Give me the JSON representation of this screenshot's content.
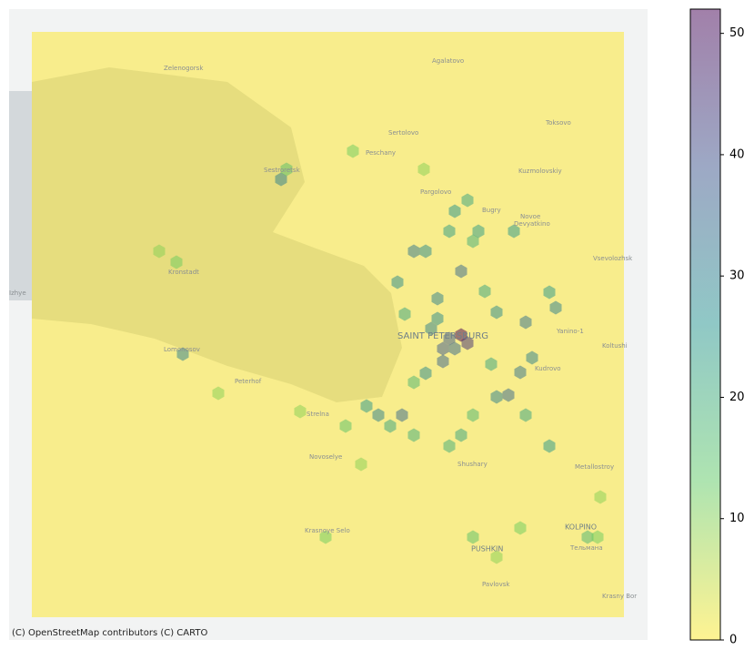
{
  "chart_data": {
    "type": "hexbin",
    "attribution": "(C) OpenStreetMap contributors (C) CARTO",
    "map_labels": [
      "Zelenogorsk",
      "Agalatovo",
      "Sestroretsk",
      "Sertolovo",
      "Peschany",
      "Toksovo",
      "Kuzmolovskiy",
      "Pargolovo",
      "Bugry",
      "Novoe",
      "Devyatkino",
      "Vsevolozhsk",
      "Kronstadt",
      "SAINT PETERSBURG",
      "Yanino-1",
      "Koltushi",
      "Lomonosov",
      "Peterhof",
      "Kudrovo",
      "Strelna",
      "Novoselye",
      "Shushary",
      "Metallostroy",
      "Krasnoye Selo",
      "PUSHKIN",
      "KOLPINO",
      "Тельмана",
      "Pavlovsk",
      "Krasny Bor",
      "Izhye"
    ],
    "xlim": [
      29.4,
      30.804
    ],
    "ylim": [
      59.6163,
      60.24
    ],
    "x": [
      30.394,
      30.408,
      30.368,
      30.354,
      30.38,
      30.354,
      30.328,
      30.342,
      30.342,
      30.394,
      30.29,
      30.316,
      30.38,
      30.408,
      30.432,
      30.51,
      30.254,
      30.472,
      30.536,
      30.55,
      30.524,
      30.498,
      30.472,
      30.316,
      30.264,
      30.212,
      30.186,
      30.238,
      30.29,
      30.394,
      30.368,
      30.42,
      30.536,
      30.588,
      30.588,
      30.602,
      29.998,
      29.782,
      30.01,
      29.73,
      29.768,
      30.156,
      30.312,
      30.14,
      30.174,
      30.096,
      30.42,
      30.472,
      30.672,
      30.694,
      30.7,
      30.524,
      29.86,
      30.04,
      30.27,
      30.446,
      30.42,
      30.368,
      30.46,
      30.29
    ],
    "y": [
      59.9178,
      59.9097,
      59.9142,
      59.9043,
      59.9043,
      59.8917,
      59.9241,
      59.934,
      59.9538,
      59.9808,
      60.0006,
      60.0006,
      60.0402,
      60.051,
      60.0204,
      60.0204,
      59.97,
      59.9403,
      59.9304,
      59.8953,
      59.8809,
      59.8584,
      59.8566,
      59.88,
      59.8386,
      59.8386,
      59.8476,
      59.8278,
      59.8188,
      59.8188,
      59.808,
      59.8386,
      59.8386,
      59.808,
      59.9601,
      59.9448,
      60.0717,
      59.8989,
      60.0816,
      60.0006,
      59.9898,
      60.0996,
      60.0816,
      59.8278,
      59.79,
      59.718,
      59.718,
      59.6982,
      59.718,
      59.718,
      59.7576,
      59.727,
      59.8602,
      59.8422,
      59.9385,
      59.961,
      60.0105,
      60.0204,
      59.889,
      59.871
    ],
    "values": [
      52,
      45,
      38,
      38,
      35,
      36,
      30,
      28,
      30,
      35,
      32,
      28,
      26,
      22,
      24,
      25,
      28,
      28,
      33,
      30,
      33,
      35,
      30,
      28,
      35,
      30,
      25,
      22,
      20,
      22,
      20,
      18,
      22,
      25,
      25,
      30,
      30,
      30,
      15,
      10,
      12,
      12,
      10,
      15,
      10,
      12,
      15,
      10,
      18,
      12,
      10,
      12,
      10,
      10,
      22,
      22,
      20,
      24,
      22,
      18
    ],
    "colorscale": [
      "#fde725",
      "#5ec962",
      "#21918c",
      "#3b528b",
      "#440154"
    ],
    "opacity": 0.5,
    "clim": [
      0,
      52
    ],
    "cticks": [
      0,
      10,
      20,
      30,
      40,
      50
    ]
  }
}
